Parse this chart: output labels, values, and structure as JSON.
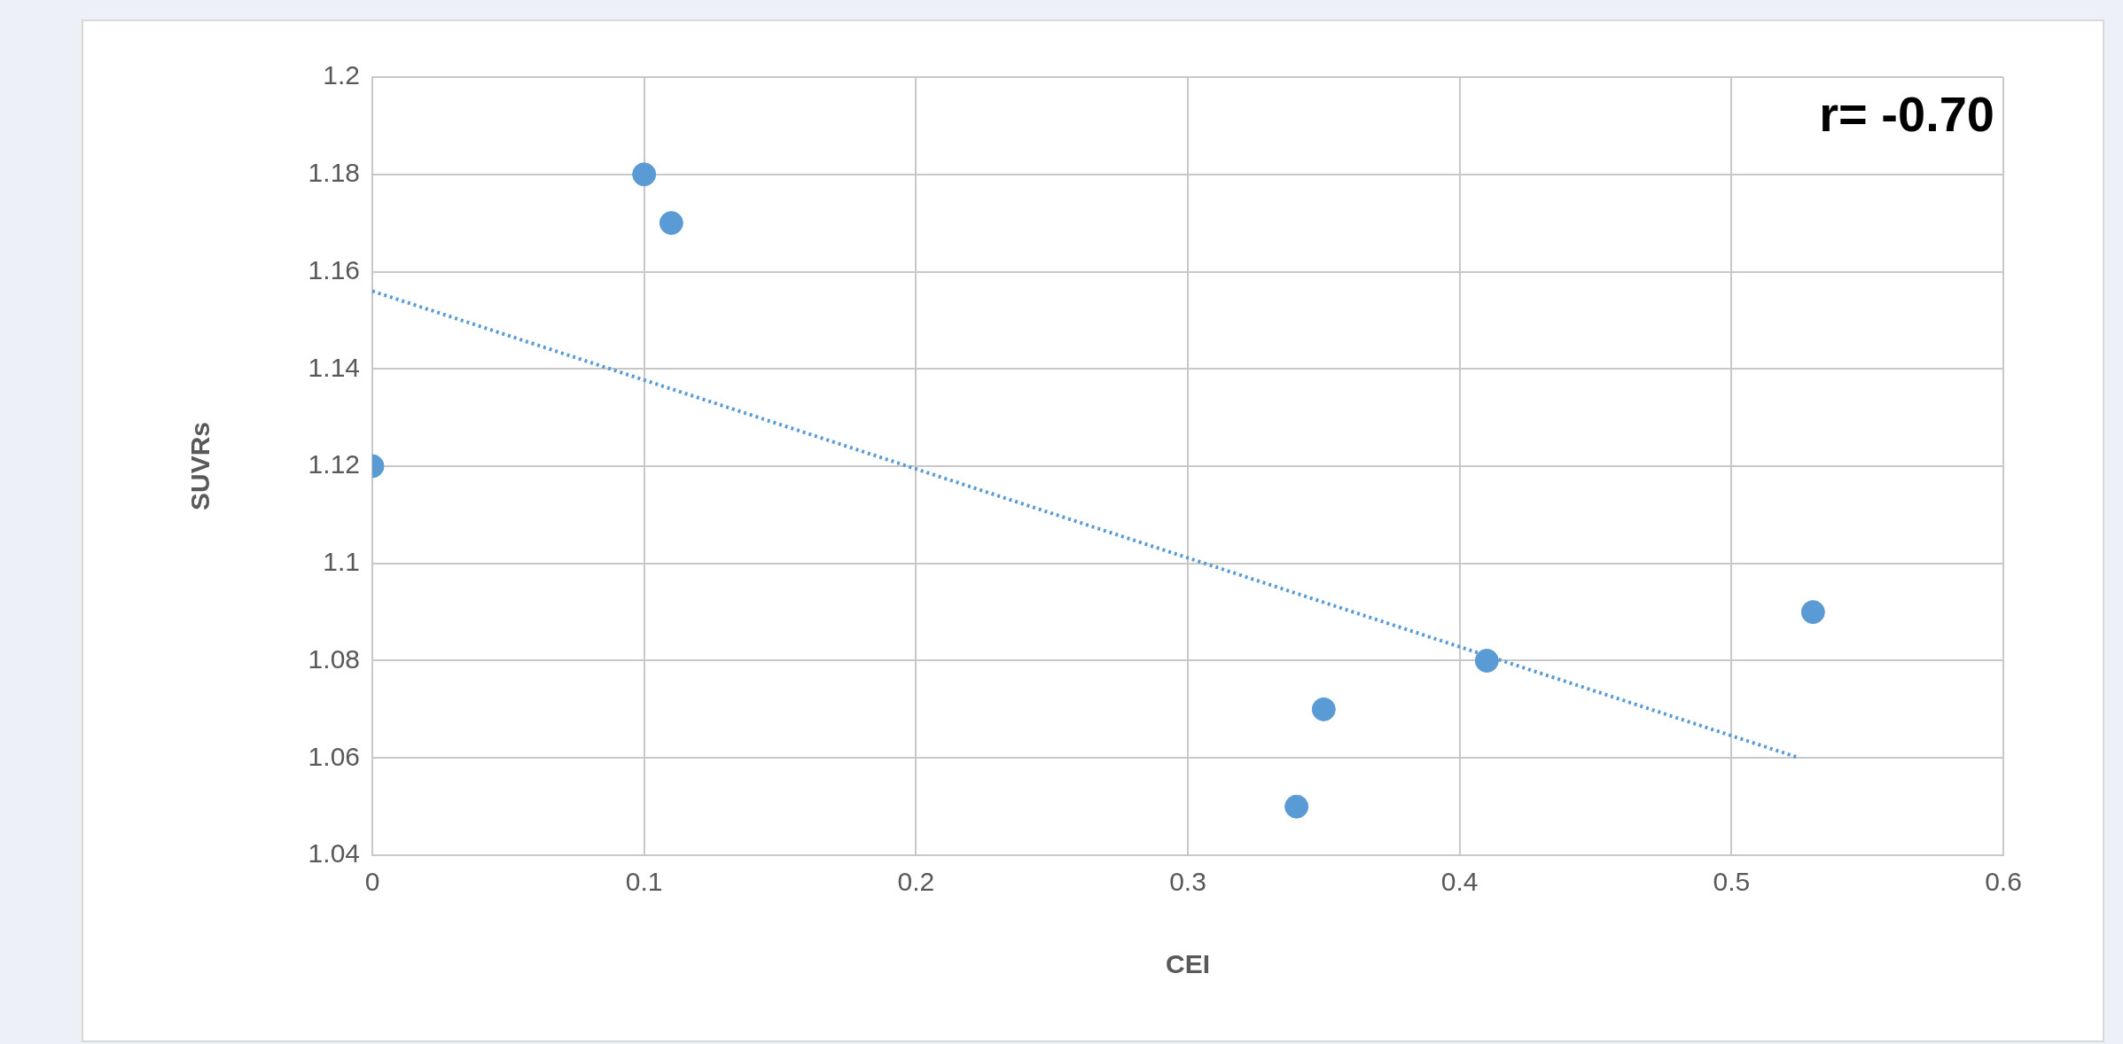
{
  "chart_data": {
    "type": "scatter",
    "xlabel": "CEI",
    "ylabel": "SUVRs",
    "annotations": [
      "r= -0.70"
    ],
    "x": [
      0,
      0.1,
      0.11,
      0.34,
      0.35,
      0.41,
      0.53
    ],
    "series": [
      {
        "color": "#5b9bd5",
        "marker": "circle",
        "values": [
          1.12,
          1.18,
          1.17,
          1.05,
          1.07,
          1.08,
          1.09
        ]
      },
      {
        "type": "line",
        "color": "#5b9bd5",
        "line_style": "dotted",
        "marker": "none",
        "x": [
          0,
          0.525
        ],
        "values": [
          1.156,
          1.06
        ]
      }
    ],
    "xlim": [
      0,
      0.6
    ],
    "xticks": [
      0,
      0.1,
      0.2,
      0.3,
      0.4,
      0.5,
      0.6
    ],
    "ylim": [
      1.04,
      1.2
    ],
    "yticks": [
      1.04,
      1.06,
      1.08,
      1.1,
      1.12,
      1.14,
      1.16,
      1.18,
      1.2
    ],
    "grid": true,
    "legend": false
  }
}
